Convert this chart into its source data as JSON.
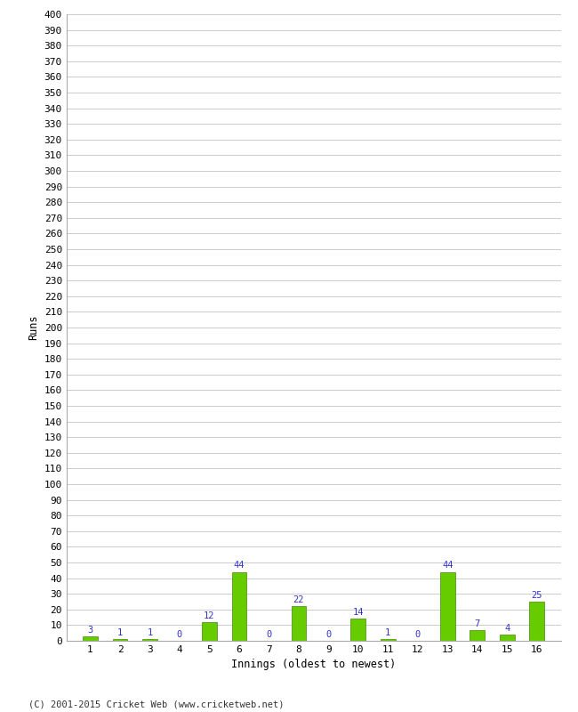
{
  "xlabel": "Innings (oldest to newest)",
  "ylabel": "Runs",
  "categories": [
    1,
    2,
    3,
    4,
    5,
    6,
    7,
    8,
    9,
    10,
    11,
    12,
    13,
    14,
    15,
    16
  ],
  "values": [
    3,
    1,
    1,
    0,
    12,
    44,
    0,
    22,
    0,
    14,
    1,
    0,
    44,
    7,
    4,
    25
  ],
  "bar_color": "#66cc00",
  "bar_edge_color": "#448800",
  "label_color": "#3333cc",
  "ylim": [
    0,
    400
  ],
  "background_color": "#ffffff",
  "grid_color": "#cccccc",
  "footer": "(C) 2001-2015 Cricket Web (www.cricketweb.net)"
}
